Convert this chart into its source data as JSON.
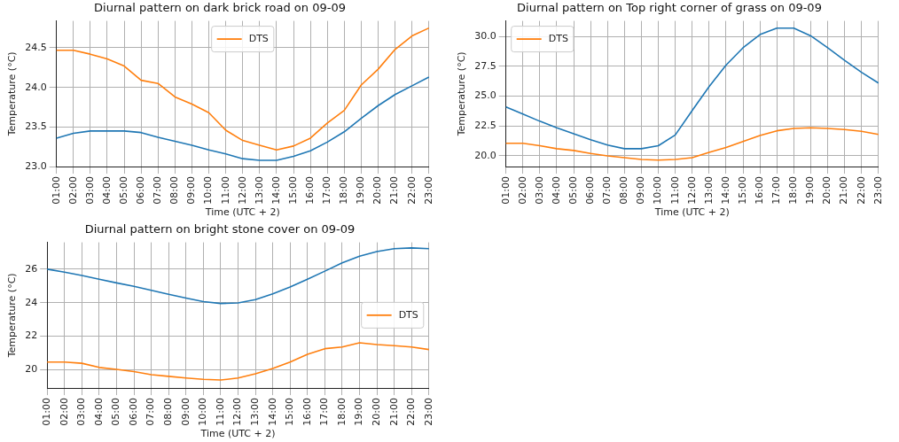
{
  "chart_data": [
    {
      "type": "line",
      "title": "Diurnal pattern on dark brick road on 09-09",
      "xlabel": "Time (UTC + 2)",
      "ylabel": "Temperature (°C)",
      "categories": [
        "01:00",
        "02:00",
        "03:00",
        "04:00",
        "05:00",
        "06:00",
        "07:00",
        "08:00",
        "09:00",
        "10:00",
        "11:00",
        "12:00",
        "13:00",
        "14:00",
        "15:00",
        "16:00",
        "17:00",
        "18:00",
        "19:00",
        "20:00",
        "21:00",
        "22:00",
        "23:00"
      ],
      "series": [
        {
          "color": "#1f77b4",
          "values": [
            23.36,
            23.42,
            23.45,
            23.45,
            23.45,
            23.43,
            23.37,
            23.32,
            23.27,
            23.21,
            23.16,
            23.1,
            23.08,
            23.08,
            23.13,
            23.2,
            23.31,
            23.44,
            23.61,
            23.77,
            23.91,
            24.02,
            24.13
          ]
        },
        {
          "name": "DTS",
          "color": "#ff7f0e",
          "values": [
            24.47,
            24.47,
            24.42,
            24.36,
            24.27,
            24.09,
            24.05,
            23.88,
            23.79,
            23.68,
            23.46,
            23.33,
            23.27,
            23.21,
            23.26,
            23.36,
            23.55,
            23.71,
            24.03,
            24.23,
            24.48,
            24.65,
            24.75
          ]
        }
      ],
      "ylim": [
        23.0,
        24.84
      ],
      "yticks": [
        {
          "value": 23,
          "label": "23.0"
        },
        23.5,
        {
          "value": 24,
          "label": "24.0"
        },
        24.5
      ],
      "grid": true,
      "legend": "top"
    },
    {
      "type": "line",
      "title": "Diurnal pattern on Top right corner of grass on 09-09",
      "xlabel": "Time (UTC + 2)",
      "ylabel": "Temperature (°C)",
      "categories": [
        "01:00",
        "02:00",
        "03:00",
        "04:00",
        "05:00",
        "06:00",
        "07:00",
        "08:00",
        "09:00",
        "10:00",
        "11:00",
        "12:00",
        "13:00",
        "14:00",
        "15:00",
        "16:00",
        "17:00",
        "18:00",
        "19:00",
        "20:00",
        "21:00",
        "22:00",
        "23:00"
      ],
      "series": [
        {
          "color": "#1f77b4",
          "values": [
            24.1,
            23.5,
            22.9,
            22.35,
            21.85,
            21.35,
            20.9,
            20.6,
            20.6,
            20.85,
            21.75,
            23.8,
            25.8,
            27.6,
            29.05,
            30.15,
            30.7,
            30.7,
            30.05,
            29.05,
            28.0,
            27.0,
            26.1
          ]
        },
        {
          "name": "DTS",
          "color": "#ff7f0e",
          "values": [
            21.05,
            21.05,
            20.85,
            20.6,
            20.45,
            20.2,
            20.0,
            19.85,
            19.7,
            19.65,
            19.7,
            19.85,
            20.3,
            20.7,
            21.2,
            21.7,
            22.1,
            22.3,
            22.35,
            22.3,
            22.2,
            22.05,
            21.8
          ]
        }
      ],
      "ylim": [
        19.1,
        31.3
      ],
      "yticks": [
        {
          "value": 20,
          "label": "20.0"
        },
        22.5,
        {
          "value": 25,
          "label": "25.0"
        },
        27.5,
        {
          "value": 30,
          "label": "30.0"
        }
      ],
      "grid": true,
      "legend": "top left"
    },
    {
      "type": "line",
      "title": "Diurnal pattern on bright stone cover on 09-09",
      "xlabel": "Time (UTC + 2)",
      "ylabel": "Temperature (°C)",
      "categories": [
        "01:00",
        "02:00",
        "03:00",
        "04:00",
        "05:00",
        "06:00",
        "07:00",
        "08:00",
        "09:00",
        "10:00",
        "11:00",
        "12:00",
        "13:00",
        "14:00",
        "15:00",
        "16:00",
        "17:00",
        "18:00",
        "19:00",
        "20:00",
        "21:00",
        "22:00",
        "23:00"
      ],
      "series": [
        {
          "color": "#1f77b4",
          "values": [
            26.0,
            25.82,
            25.62,
            25.4,
            25.18,
            24.97,
            24.74,
            24.5,
            24.27,
            24.06,
            23.95,
            23.98,
            24.18,
            24.53,
            24.93,
            25.4,
            25.88,
            26.38,
            26.77,
            27.05,
            27.22,
            27.27,
            27.22
          ]
        },
        {
          "name": "DTS",
          "color": "#ff7f0e",
          "values": [
            20.45,
            20.45,
            20.38,
            20.13,
            20.02,
            19.88,
            19.7,
            19.6,
            19.5,
            19.42,
            19.38,
            19.5,
            19.75,
            20.07,
            20.45,
            20.92,
            21.25,
            21.35,
            21.6,
            21.5,
            21.43,
            21.35,
            21.2
          ]
        }
      ],
      "ylim": [
        18.9,
        27.6
      ],
      "yticks": [
        20,
        22,
        24,
        26
      ],
      "grid": true,
      "legend": "right"
    }
  ]
}
